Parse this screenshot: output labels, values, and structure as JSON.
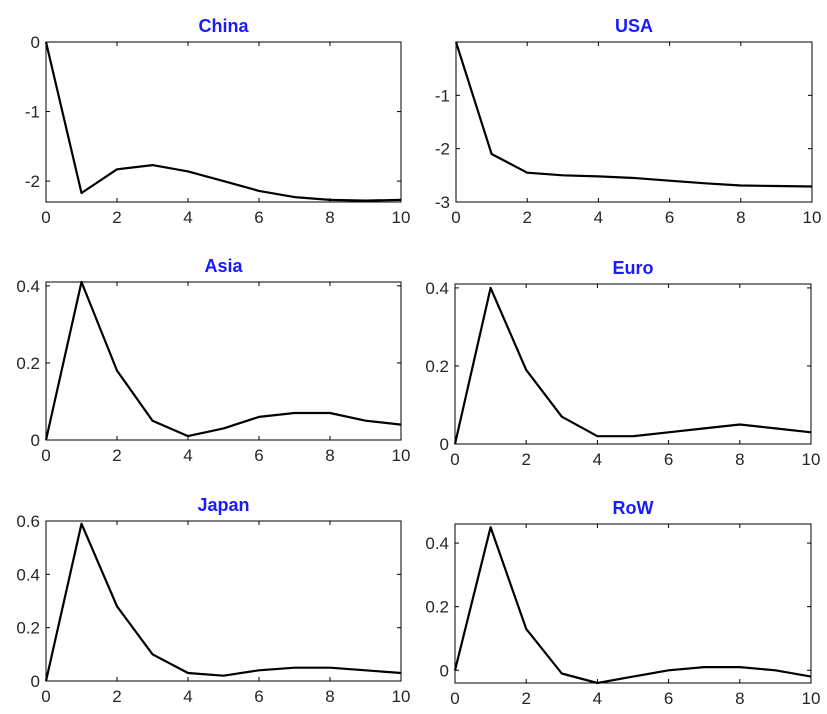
{
  "chart_data": [
    {
      "type": "line",
      "title": "China",
      "xlabel": "",
      "ylabel": "",
      "x": [
        0,
        1,
        2,
        3,
        4,
        5,
        6,
        7,
        8,
        9,
        10
      ],
      "values": [
        0,
        -2.17,
        -1.83,
        -1.77,
        -1.86,
        -2.0,
        -2.14,
        -2.23,
        -2.27,
        -2.28,
        -2.27
      ],
      "xlim": [
        0,
        10
      ],
      "ylim": [
        -2.3,
        0
      ],
      "xticks": [
        0,
        2,
        4,
        6,
        8,
        10
      ],
      "yticks": [
        0,
        -1,
        -2
      ],
      "ytick_labels": [
        "0",
        "-1",
        "-2"
      ],
      "line_color": "#000000"
    },
    {
      "type": "line",
      "title": "USA",
      "xlabel": "",
      "ylabel": "",
      "x": [
        0,
        1,
        2,
        3,
        4,
        5,
        6,
        7,
        8,
        9,
        10
      ],
      "values": [
        0,
        -2.1,
        -2.45,
        -2.5,
        -2.52,
        -2.55,
        -2.6,
        -2.65,
        -2.69,
        -2.7,
        -2.71
      ],
      "xlim": [
        0,
        10
      ],
      "ylim": [
        -3,
        0
      ],
      "xticks": [
        0,
        2,
        4,
        6,
        8,
        10
      ],
      "yticks": [
        -1,
        -2,
        -3
      ],
      "ytick_labels": [
        "-1",
        "-2",
        "-3"
      ],
      "line_color": "#000000"
    },
    {
      "type": "line",
      "title": "Asia",
      "xlabel": "",
      "ylabel": "",
      "x": [
        0,
        1,
        2,
        3,
        4,
        5,
        6,
        7,
        8,
        9,
        10
      ],
      "values": [
        0,
        0.41,
        0.18,
        0.05,
        0.01,
        0.03,
        0.06,
        0.07,
        0.07,
        0.05,
        0.04
      ],
      "xlim": [
        0,
        10
      ],
      "ylim": [
        0,
        0.41
      ],
      "xticks": [
        0,
        2,
        4,
        6,
        8,
        10
      ],
      "yticks": [
        0,
        0.2,
        0.4
      ],
      "ytick_labels": [
        "0",
        "0.2",
        "0.4"
      ],
      "line_color": "#000000"
    },
    {
      "type": "line",
      "title": "Euro",
      "xlabel": "",
      "ylabel": "",
      "x": [
        0,
        1,
        2,
        3,
        4,
        5,
        6,
        7,
        8,
        9,
        10
      ],
      "values": [
        0,
        0.4,
        0.19,
        0.07,
        0.02,
        0.02,
        0.03,
        0.04,
        0.05,
        0.04,
        0.03
      ],
      "xlim": [
        0,
        10
      ],
      "ylim": [
        0,
        0.41
      ],
      "xticks": [
        0,
        2,
        4,
        6,
        8,
        10
      ],
      "yticks": [
        0,
        0.2,
        0.4
      ],
      "ytick_labels": [
        "0",
        "0.2",
        "0.4"
      ],
      "line_color": "#000000"
    },
    {
      "type": "line",
      "title": "Japan",
      "xlabel": "",
      "ylabel": "",
      "x": [
        0,
        1,
        2,
        3,
        4,
        5,
        6,
        7,
        8,
        9,
        10
      ],
      "values": [
        0,
        0.59,
        0.28,
        0.1,
        0.03,
        0.02,
        0.04,
        0.05,
        0.05,
        0.04,
        0.03
      ],
      "xlim": [
        0,
        10
      ],
      "ylim": [
        0,
        0.6
      ],
      "xticks": [
        0,
        2,
        4,
        6,
        8,
        10
      ],
      "yticks": [
        0,
        0.2,
        0.4,
        0.6
      ],
      "ytick_labels": [
        "0",
        "0.2",
        "0.4",
        "0.6"
      ],
      "line_color": "#000000"
    },
    {
      "type": "line",
      "title": "RoW",
      "xlabel": "",
      "ylabel": "",
      "x": [
        0,
        1,
        2,
        3,
        4,
        5,
        6,
        7,
        8,
        9,
        10
      ],
      "values": [
        0,
        0.45,
        0.13,
        -0.01,
        -0.04,
        -0.02,
        0.0,
        0.01,
        0.01,
        0.0,
        -0.02
      ],
      "xlim": [
        0,
        10
      ],
      "ylim": [
        -0.04,
        0.46
      ],
      "xticks": [
        0,
        2,
        4,
        6,
        8,
        10
      ],
      "yticks": [
        0,
        0.2,
        0.4
      ],
      "ytick_labels": [
        "0",
        "0.2",
        "0.4"
      ],
      "line_color": "#000000"
    }
  ]
}
